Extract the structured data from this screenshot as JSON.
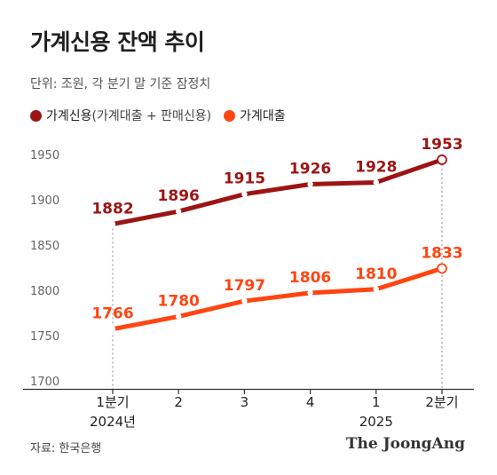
{
  "title": "가계신용 잔액 추이",
  "unit_note": "단위: 조원, 각 분기 말 기준 잠정치",
  "legend": [
    {
      "label": "가계신용",
      "sublabel": "(가계대출 + 판매신용)",
      "color": "#9c1414"
    },
    {
      "label": "가계대출",
      "sublabel": "",
      "color": "#ff4512"
    }
  ],
  "source": "자료: 한국은행",
  "brand": "The JoongAng",
  "chart_data": {
    "type": "line",
    "title": "가계신용 잔액 추이",
    "categories": [
      "1분기",
      "2",
      "3",
      "4",
      "1",
      "2분기"
    ],
    "year_labels": [
      {
        "index": 0,
        "text": "2024년"
      },
      {
        "index": 4,
        "text": "2025"
      }
    ],
    "series": [
      {
        "name": "가계신용",
        "color": "#9c1414",
        "values": [
          1882,
          1896,
          1915,
          1926,
          1928,
          1953
        ]
      },
      {
        "name": "가계대출",
        "color": "#ff4512",
        "values": [
          1766,
          1780,
          1797,
          1806,
          1810,
          1833
        ]
      }
    ],
    "ylim": [
      1700,
      1980
    ],
    "yticks": [
      1700,
      1750,
      1800,
      1850,
      1900,
      1950
    ],
    "grid": false,
    "legend_position": "top-left"
  }
}
